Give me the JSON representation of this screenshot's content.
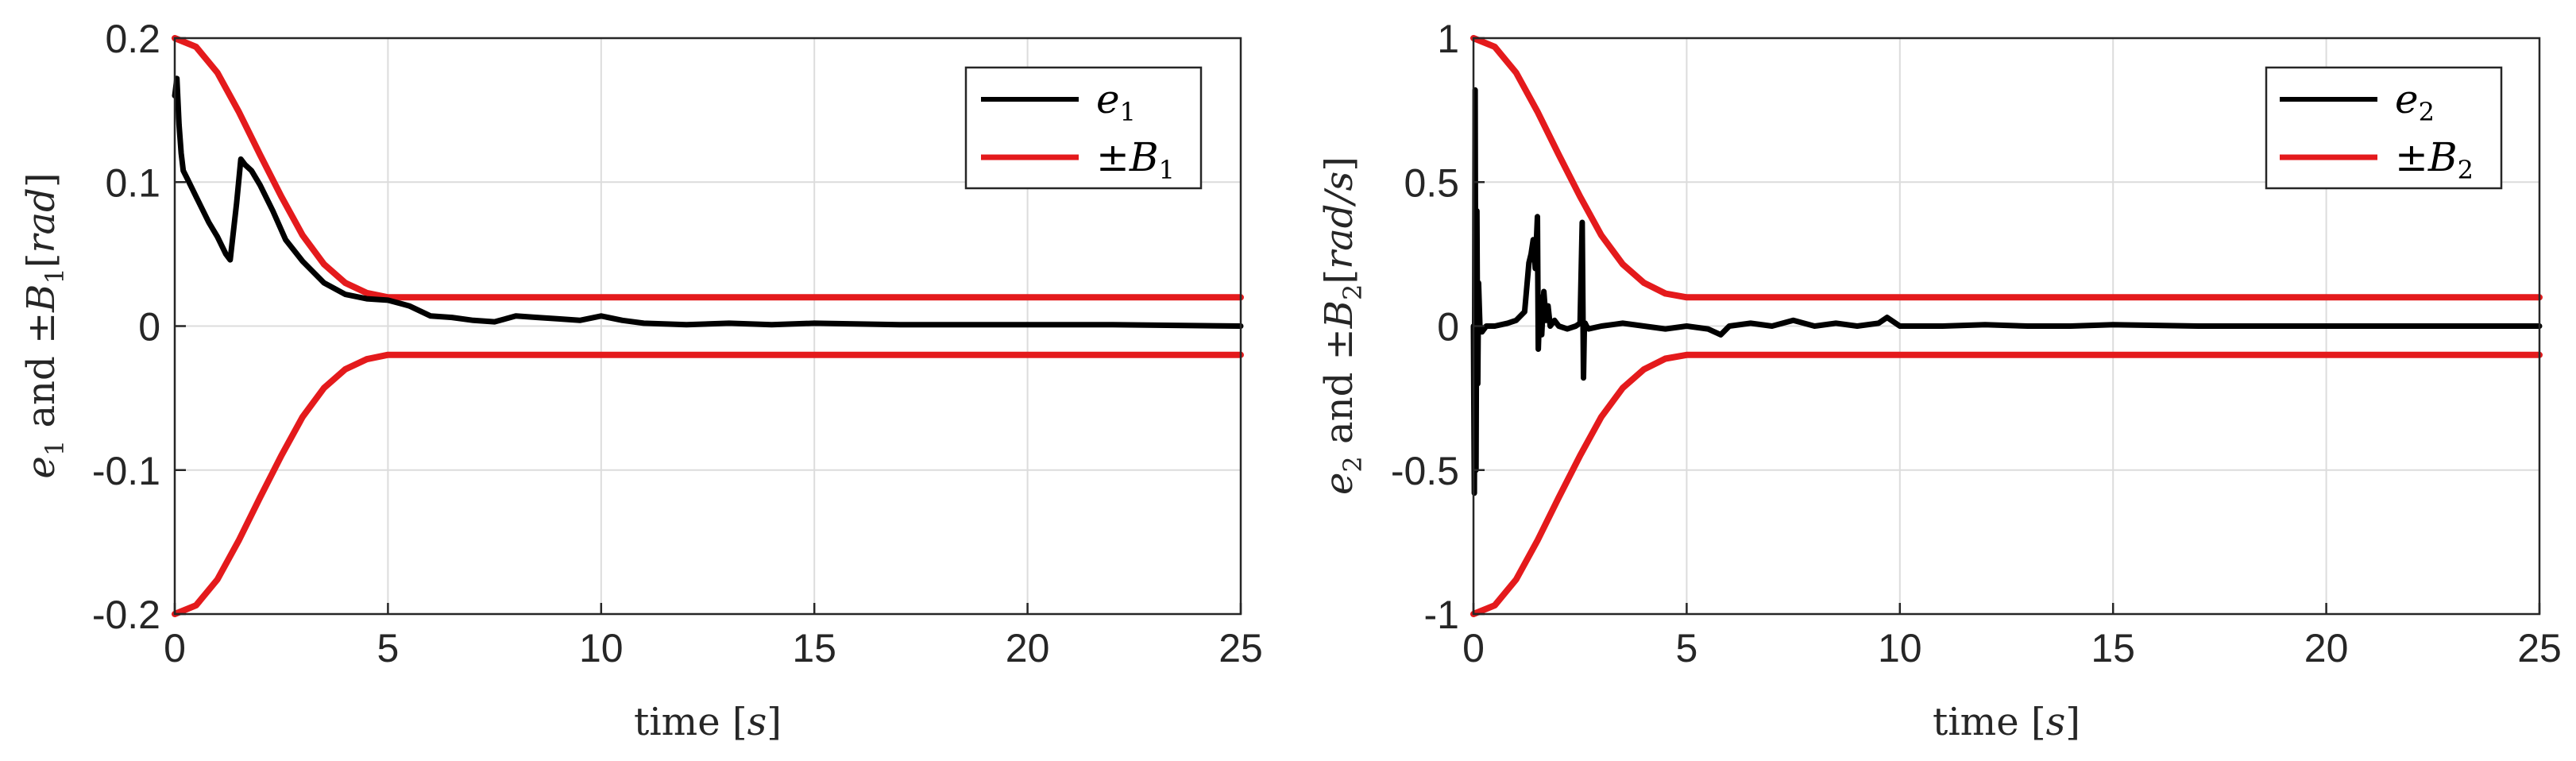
{
  "chart_data": [
    {
      "type": "line",
      "xlabel": "time [s]",
      "ylabel": "e1 and ±B1[rad]",
      "xlim": [
        0,
        25
      ],
      "ylim": [
        -0.2,
        0.2
      ],
      "xticks": [
        0,
        5,
        10,
        15,
        20,
        25
      ],
      "xtick_labels": [
        "0",
        "5",
        "10",
        "15",
        "20",
        "25"
      ],
      "yticks": [
        -0.2,
        -0.1,
        0,
        0.1,
        0.2
      ],
      "ytick_labels": [
        "-0.2",
        "-0.1",
        "0",
        "0.1",
        "0.2"
      ],
      "grid": true,
      "legend_position": "top-right",
      "legend": [
        {
          "label": "e1",
          "color": "#000000"
        },
        {
          "label": "±B1",
          "color": "#e41a1c"
        }
      ],
      "series": [
        {
          "name": "e1",
          "color": "#000000",
          "x": [
            0,
            0.05,
            0.1,
            0.15,
            0.2,
            0.3,
            0.5,
            0.8,
            1.0,
            1.2,
            1.3,
            1.45,
            1.55,
            1.65,
            1.8,
            2.0,
            2.3,
            2.6,
            3.0,
            3.5,
            4.0,
            4.5,
            5.0,
            5.5,
            6.0,
            6.5,
            7.0,
            7.5,
            8.0,
            8.5,
            9.0,
            9.5,
            10.0,
            10.5,
            11.0,
            12.0,
            13.0,
            14.0,
            15.0,
            17.0,
            20.0,
            22.0,
            25.0
          ],
          "y": [
            0.16,
            0.172,
            0.14,
            0.12,
            0.108,
            0.102,
            0.09,
            0.072,
            0.062,
            0.05,
            0.046,
            0.085,
            0.116,
            0.112,
            0.108,
            0.098,
            0.08,
            0.06,
            0.045,
            0.03,
            0.022,
            0.019,
            0.018,
            0.014,
            0.007,
            0.006,
            0.004,
            0.003,
            0.007,
            0.006,
            0.005,
            0.004,
            0.007,
            0.004,
            0.002,
            0.001,
            0.002,
            0.001,
            0.002,
            0.001,
            0.001,
            0.001,
            0.0
          ]
        },
        {
          "name": "±B1",
          "color": "#e41a1c",
          "x": [
            0,
            0.5,
            1.0,
            1.5,
            2.0,
            2.5,
            3.0,
            3.5,
            4.0,
            4.5,
            5.0,
            25.0
          ],
          "y": [
            0.2,
            0.194,
            0.176,
            0.149,
            0.119,
            0.09,
            0.063,
            0.043,
            0.03,
            0.023,
            0.02,
            0.02
          ]
        },
        {
          "name": "±B1",
          "color": "#e41a1c",
          "x": [
            0,
            0.5,
            1.0,
            1.5,
            2.0,
            2.5,
            3.0,
            3.5,
            4.0,
            4.5,
            5.0,
            25.0
          ],
          "y": [
            -0.2,
            -0.194,
            -0.176,
            -0.149,
            -0.119,
            -0.09,
            -0.063,
            -0.043,
            -0.03,
            -0.023,
            -0.02,
            -0.02
          ]
        }
      ]
    },
    {
      "type": "line",
      "xlabel": "time [s]",
      "ylabel": "e2 and ±B2[rad/s]",
      "xlim": [
        0,
        25
      ],
      "ylim": [
        -1,
        1
      ],
      "xticks": [
        0,
        5,
        10,
        15,
        20,
        25
      ],
      "xtick_labels": [
        "0",
        "5",
        "10",
        "15",
        "20",
        "25"
      ],
      "yticks": [
        -1,
        -0.5,
        0,
        0.5,
        1
      ],
      "ytick_labels": [
        "-1",
        "-0.5",
        "0",
        "0.5",
        "1"
      ],
      "grid": true,
      "legend_position": "top-right",
      "legend": [
        {
          "label": "e2",
          "color": "#000000"
        },
        {
          "label": "±B2",
          "color": "#e41a1c"
        }
      ],
      "series": [
        {
          "name": "e2",
          "color": "#000000",
          "x": [
            0,
            0.02,
            0.04,
            0.06,
            0.08,
            0.1,
            0.12,
            0.15,
            0.2,
            0.3,
            0.5,
            0.8,
            1.0,
            1.2,
            1.3,
            1.35,
            1.4,
            1.45,
            1.5,
            1.52,
            1.55,
            1.58,
            1.6,
            1.65,
            1.7,
            1.75,
            1.8,
            1.9,
            2.0,
            2.2,
            2.4,
            2.5,
            2.55,
            2.58,
            2.6,
            2.62,
            2.65,
            2.7,
            3.0,
            3.5,
            4.0,
            4.5,
            5.0,
            5.5,
            5.8,
            6.0,
            6.5,
            7.0,
            7.5,
            8.0,
            8.5,
            9.0,
            9.5,
            9.7,
            10.0,
            11.0,
            12.0,
            13.0,
            14.0,
            15.0,
            17.0,
            20.0,
            22.0,
            25.0
          ],
          "y": [
            0.0,
            -0.58,
            0.82,
            -0.5,
            0.4,
            -0.2,
            0.15,
            0.0,
            -0.02,
            0.0,
            0.0,
            0.01,
            0.02,
            0.05,
            0.22,
            0.25,
            0.3,
            0.2,
            0.38,
            -0.08,
            0.05,
            0.1,
            -0.03,
            0.12,
            0.02,
            0.07,
            0.0,
            0.02,
            0.0,
            -0.01,
            0.0,
            0.01,
            0.36,
            -0.18,
            0.0,
            0.01,
            0.0,
            -0.01,
            0.0,
            0.01,
            0.0,
            -0.01,
            0.0,
            -0.01,
            -0.03,
            0.0,
            0.01,
            0.0,
            0.02,
            0.0,
            0.01,
            0.0,
            0.01,
            0.03,
            0.0,
            0.0,
            0.005,
            0.0,
            0.0,
            0.005,
            0.0,
            0.0,
            0.0,
            0.0
          ]
        },
        {
          "name": "±B2",
          "color": "#e41a1c",
          "x": [
            0,
            0.5,
            1.0,
            1.5,
            2.0,
            2.5,
            3.0,
            3.5,
            4.0,
            4.5,
            5.0,
            25.0
          ],
          "y": [
            1.0,
            0.97,
            0.88,
            0.745,
            0.595,
            0.45,
            0.315,
            0.215,
            0.15,
            0.113,
            0.1,
            0.1
          ]
        },
        {
          "name": "±B2",
          "color": "#e41a1c",
          "x": [
            0,
            0.5,
            1.0,
            1.5,
            2.0,
            2.5,
            3.0,
            3.5,
            4.0,
            4.5,
            5.0,
            25.0
          ],
          "y": [
            -1.0,
            -0.97,
            -0.88,
            -0.745,
            -0.595,
            -0.45,
            -0.315,
            -0.215,
            -0.15,
            -0.113,
            -0.1,
            -0.1
          ]
        }
      ]
    }
  ]
}
